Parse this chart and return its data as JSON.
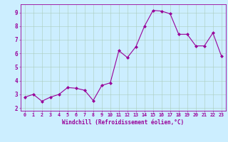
{
  "x": [
    0,
    1,
    2,
    3,
    4,
    5,
    6,
    7,
    8,
    9,
    10,
    11,
    12,
    13,
    14,
    15,
    16,
    17,
    18,
    19,
    20,
    21,
    22,
    23
  ],
  "y": [
    2.8,
    3.0,
    2.5,
    2.8,
    3.0,
    3.5,
    3.45,
    3.3,
    2.55,
    3.65,
    3.85,
    6.2,
    5.7,
    6.5,
    8.0,
    9.15,
    9.1,
    8.9,
    7.4,
    7.4,
    6.55,
    6.55,
    7.5,
    5.8
  ],
  "line_color": "#990099",
  "marker": "D",
  "markersize": 2.0,
  "linewidth": 0.8,
  "bg_color": "#cceeff",
  "grid_color": "#aaccbb",
  "xlabel": "Windchill (Refroidissement éolien,°C)",
  "xlabel_color": "#990099",
  "tick_color": "#990099",
  "ylabel_ticks": [
    2,
    3,
    4,
    5,
    6,
    7,
    8,
    9
  ],
  "xtick_labels": [
    "0",
    "1",
    "2",
    "3",
    "4",
    "5",
    "6",
    "7",
    "8",
    "9",
    "10",
    "11",
    "12",
    "13",
    "14",
    "15",
    "16",
    "17",
    "18",
    "19",
    "20",
    "21",
    "22",
    "23"
  ],
  "xlim": [
    -0.5,
    23.5
  ],
  "ylim": [
    1.8,
    9.6
  ]
}
